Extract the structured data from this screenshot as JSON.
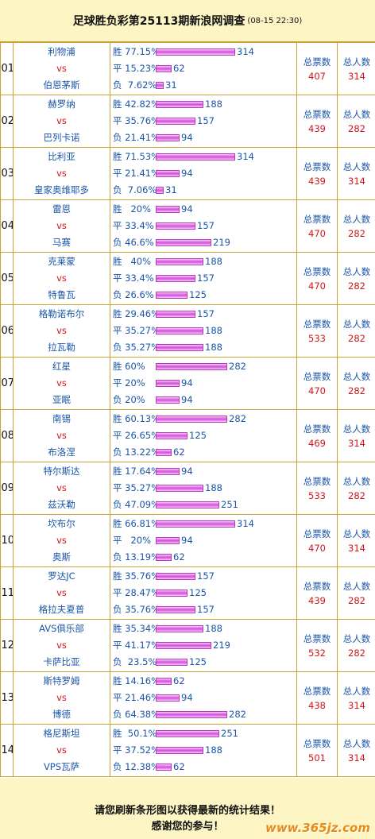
{
  "header": {
    "title": "足球胜负彩第25113期新浪网调查",
    "date": "(08-15 22:30)"
  },
  "labels": {
    "total": "总票数",
    "people": "总人数",
    "vs": "vs"
  },
  "colors": {
    "team": "#1a55a8",
    "vs": "#d2161c",
    "value": "#d2161c",
    "bar": "#d14fd7",
    "border": "#c9a23b",
    "bg": "#fdf5c4"
  },
  "matches": [
    {
      "num": "01",
      "home": "利物浦",
      "away": "伯恩茅斯",
      "win": {
        "label": "胜 77.15%",
        "count": "314",
        "value": 314
      },
      "draw": {
        "label": "平 15.23%",
        "count": "62",
        "value": 62
      },
      "lose": {
        "label": "负  7.62%",
        "count": "31",
        "value": 31
      },
      "total": "407",
      "people": "314"
    },
    {
      "num": "02",
      "home": "赫罗纳",
      "away": "巴列卡诺",
      "win": {
        "label": "胜 42.82%",
        "count": "188",
        "value": 188
      },
      "draw": {
        "label": "平 35.76%",
        "count": "157",
        "value": 157
      },
      "lose": {
        "label": "负 21.41%",
        "count": "94",
        "value": 94
      },
      "total": "439",
      "people": "282"
    },
    {
      "num": "03",
      "home": "比利亚",
      "away": "皇家奥维耶多",
      "win": {
        "label": "胜 71.53%",
        "count": "314",
        "value": 314
      },
      "draw": {
        "label": "平 21.41%",
        "count": "94",
        "value": 94
      },
      "lose": {
        "label": "负  7.06%",
        "count": "31",
        "value": 31
      },
      "total": "439",
      "people": "314"
    },
    {
      "num": "04",
      "home": "雷恩",
      "away": "马赛",
      "win": {
        "label": "胜   20%",
        "count": "94",
        "value": 94
      },
      "draw": {
        "label": "平 33.4%",
        "count": "157",
        "value": 157
      },
      "lose": {
        "label": "负 46.6%",
        "count": "219",
        "value": 219
      },
      "total": "470",
      "people": "282"
    },
    {
      "num": "05",
      "home": "克莱蒙",
      "away": "特鲁瓦",
      "win": {
        "label": "胜   40%",
        "count": "188",
        "value": 188
      },
      "draw": {
        "label": "平 33.4%",
        "count": "157",
        "value": 157
      },
      "lose": {
        "label": "负 26.6%",
        "count": "125",
        "value": 125
      },
      "total": "470",
      "people": "282"
    },
    {
      "num": "06",
      "home": "格勒诺布尔",
      "away": "拉瓦勒",
      "win": {
        "label": "胜 29.46%",
        "count": "157",
        "value": 157
      },
      "draw": {
        "label": "平 35.27%",
        "count": "188",
        "value": 188
      },
      "lose": {
        "label": "负 35.27%",
        "count": "188",
        "value": 188
      },
      "total": "533",
      "people": "282"
    },
    {
      "num": "07",
      "home": "红星",
      "away": "亚眠",
      "win": {
        "label": "胜 60%",
        "count": "282",
        "value": 282
      },
      "draw": {
        "label": "平 20%",
        "count": "94",
        "value": 94
      },
      "lose": {
        "label": "负 20%",
        "count": "94",
        "value": 94
      },
      "total": "470",
      "people": "282"
    },
    {
      "num": "08",
      "home": "南锡",
      "away": "布洛涅",
      "win": {
        "label": "胜 60.13%",
        "count": "282",
        "value": 282
      },
      "draw": {
        "label": "平 26.65%",
        "count": "125",
        "value": 125
      },
      "lose": {
        "label": "负 13.22%",
        "count": "62",
        "value": 62
      },
      "total": "469",
      "people": "314"
    },
    {
      "num": "09",
      "home": "特尔斯达",
      "away": "兹沃勒",
      "win": {
        "label": "胜 17.64%",
        "count": "94",
        "value": 94
      },
      "draw": {
        "label": "平 35.27%",
        "count": "188",
        "value": 188
      },
      "lose": {
        "label": "负 47.09%",
        "count": "251",
        "value": 251
      },
      "total": "533",
      "people": "282"
    },
    {
      "num": "10",
      "home": "坎布尔",
      "away": "奥斯",
      "win": {
        "label": "胜 66.81%",
        "count": "314",
        "value": 314
      },
      "draw": {
        "label": "平   20%",
        "count": "94",
        "value": 94
      },
      "lose": {
        "label": "负 13.19%",
        "count": "62",
        "value": 62
      },
      "total": "470",
      "people": "314"
    },
    {
      "num": "11",
      "home": "罗达JC",
      "away": "格拉夫夏普",
      "win": {
        "label": "胜 35.76%",
        "count": "157",
        "value": 157
      },
      "draw": {
        "label": "平 28.47%",
        "count": "125",
        "value": 125
      },
      "lose": {
        "label": "负 35.76%",
        "count": "157",
        "value": 157
      },
      "total": "439",
      "people": "282"
    },
    {
      "num": "12",
      "home": "AVS俱乐部",
      "away": "卡萨比亚",
      "win": {
        "label": "胜 35.34%",
        "count": "188",
        "value": 188
      },
      "draw": {
        "label": "平 41.17%",
        "count": "219",
        "value": 219
      },
      "lose": {
        "label": "负  23.5%",
        "count": "125",
        "value": 125
      },
      "total": "532",
      "people": "282"
    },
    {
      "num": "13",
      "home": "斯特罗姆",
      "away": "博德",
      "win": {
        "label": "胜 14.16%",
        "count": "62",
        "value": 62
      },
      "draw": {
        "label": "平 21.46%",
        "count": "94",
        "value": 94
      },
      "lose": {
        "label": "负 64.38%",
        "count": "282",
        "value": 282
      },
      "total": "438",
      "people": "314"
    },
    {
      "num": "14",
      "home": "格尼斯坦",
      "away": "VPS瓦萨",
      "win": {
        "label": "胜  50.1%",
        "count": "251",
        "value": 251
      },
      "draw": {
        "label": "平 37.52%",
        "count": "188",
        "value": 188
      },
      "lose": {
        "label": "负 12.38%",
        "count": "62",
        "value": 62
      },
      "total": "501",
      "people": "314"
    }
  ],
  "footer": {
    "line1": "请您刷新条形图以获得最新的统计结果！",
    "line2": "感谢您的参与！",
    "watermark": "www.365jz.com"
  }
}
